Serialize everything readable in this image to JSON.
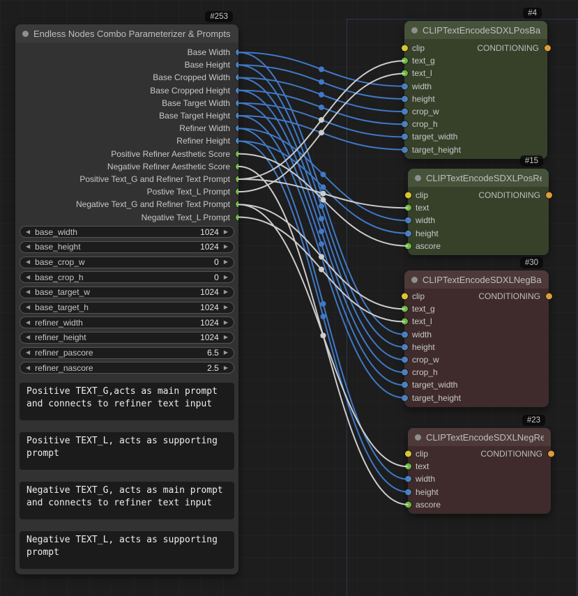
{
  "canvas": {
    "background": "#1d1d1d",
    "major_grid_color": "rgba(70,95,160,0.40)"
  },
  "left_node": {
    "badge": "#253",
    "title": "Endless Nodes Combo Parameterizer & Prompts",
    "outputs": [
      {
        "label": "Base Width",
        "type": "int"
      },
      {
        "label": "Base Height",
        "type": "int"
      },
      {
        "label": "Base Cropped Width",
        "type": "int"
      },
      {
        "label": "Base Cropped Height",
        "type": "int"
      },
      {
        "label": "Base Target Width",
        "type": "int"
      },
      {
        "label": "Base Target Height",
        "type": "int"
      },
      {
        "label": "Refiner Width",
        "type": "int"
      },
      {
        "label": "Refiner Height",
        "type": "int"
      },
      {
        "label": "Positive Refiner Aesthetic Score",
        "type": "float"
      },
      {
        "label": "Negative Refiner Aesthetic Score",
        "type": "float"
      },
      {
        "label": "Positive Text_G and Refiner Text Prompt",
        "type": "string"
      },
      {
        "label": "Postive Text_L Prompt",
        "type": "string"
      },
      {
        "label": "Negative Text_G and Refiner Text Prompt",
        "type": "string"
      },
      {
        "label": "Negative Text_L Prompt",
        "type": "string"
      }
    ],
    "widgets": [
      {
        "name": "base_width",
        "value": "1024"
      },
      {
        "name": "base_height",
        "value": "1024"
      },
      {
        "name": "base_crop_w",
        "value": "0"
      },
      {
        "name": "base_crop_h",
        "value": "0"
      },
      {
        "name": "base_target_w",
        "value": "1024"
      },
      {
        "name": "base_target_h",
        "value": "1024"
      },
      {
        "name": "refiner_width",
        "value": "1024"
      },
      {
        "name": "refiner_height",
        "value": "1024"
      },
      {
        "name": "refiner_pascore",
        "value": "6.5"
      },
      {
        "name": "refiner_nascore",
        "value": "2.5"
      }
    ],
    "prompts": [
      {
        "text": "Positive TEXT_G,acts as main prompt and connects to refiner text input"
      },
      {
        "text": "Positive TEXT_L, acts as supporting prompt"
      },
      {
        "text": "Negative TEXT_G, acts as main prompt and connects to refiner text input"
      },
      {
        "text": "Negative TEXT_L, acts as supporting prompt"
      }
    ]
  },
  "nodes": [
    {
      "id": "n4",
      "badge": "#4",
      "title": "CLIPTextEncodeSDXLPosBase",
      "theme": "green",
      "output": "CONDITIONING",
      "inputs": [
        {
          "name": "clip",
          "type": "clip"
        },
        {
          "name": "text_g",
          "type": "string"
        },
        {
          "name": "text_l",
          "type": "string"
        },
        {
          "name": "width",
          "type": "int"
        },
        {
          "name": "height",
          "type": "int"
        },
        {
          "name": "crop_w",
          "type": "int"
        },
        {
          "name": "crop_h",
          "type": "int"
        },
        {
          "name": "target_width",
          "type": "int"
        },
        {
          "name": "target_height",
          "type": "int"
        }
      ]
    },
    {
      "id": "n15",
      "badge": "#15",
      "title": "CLIPTextEncodeSDXLPosRefiner",
      "theme": "green",
      "output": "CONDITIONING",
      "inputs": [
        {
          "name": "clip",
          "type": "clip"
        },
        {
          "name": "text",
          "type": "string"
        },
        {
          "name": "width",
          "type": "int"
        },
        {
          "name": "height",
          "type": "int"
        },
        {
          "name": "ascore",
          "type": "float"
        }
      ]
    },
    {
      "id": "n30",
      "badge": "#30",
      "title": "CLIPTextEncodeSDXLNegBase",
      "theme": "red",
      "output": "CONDITIONING",
      "inputs": [
        {
          "name": "clip",
          "type": "clip"
        },
        {
          "name": "text_g",
          "type": "string"
        },
        {
          "name": "text_l",
          "type": "string"
        },
        {
          "name": "width",
          "type": "int"
        },
        {
          "name": "height",
          "type": "int"
        },
        {
          "name": "crop_w",
          "type": "int"
        },
        {
          "name": "crop_h",
          "type": "int"
        },
        {
          "name": "target_width",
          "type": "int"
        },
        {
          "name": "target_height",
          "type": "int"
        }
      ]
    },
    {
      "id": "n23",
      "badge": "#23",
      "title": "CLIPTextEncodeSDXLNegRefiner",
      "theme": "red",
      "output": "CONDITIONING",
      "inputs": [
        {
          "name": "clip",
          "type": "clip"
        },
        {
          "name": "text",
          "type": "string"
        },
        {
          "name": "width",
          "type": "int"
        },
        {
          "name": "height",
          "type": "int"
        },
        {
          "name": "ascore",
          "type": "float"
        }
      ]
    }
  ],
  "links": [
    {
      "from": "out-0",
      "to": "n4-width",
      "type": "int"
    },
    {
      "from": "out-1",
      "to": "n4-height",
      "type": "int"
    },
    {
      "from": "out-2",
      "to": "n4-crop_w",
      "type": "int"
    },
    {
      "from": "out-3",
      "to": "n4-crop_h",
      "type": "int"
    },
    {
      "from": "out-4",
      "to": "n4-target_width",
      "type": "int"
    },
    {
      "from": "out-5",
      "to": "n4-target_height",
      "type": "int"
    },
    {
      "from": "out-0",
      "to": "n30-width",
      "type": "int"
    },
    {
      "from": "out-1",
      "to": "n30-height",
      "type": "int"
    },
    {
      "from": "out-2",
      "to": "n30-crop_w",
      "type": "int"
    },
    {
      "from": "out-3",
      "to": "n30-crop_h",
      "type": "int"
    },
    {
      "from": "out-4",
      "to": "n30-target_width",
      "type": "int"
    },
    {
      "from": "out-5",
      "to": "n30-target_height",
      "type": "int"
    },
    {
      "from": "out-6",
      "to": "n15-width",
      "type": "int"
    },
    {
      "from": "out-7",
      "to": "n15-height",
      "type": "int"
    },
    {
      "from": "out-6",
      "to": "n23-width",
      "type": "int"
    },
    {
      "from": "out-7",
      "to": "n23-height",
      "type": "int"
    },
    {
      "from": "out-8",
      "to": "n15-ascore",
      "type": "float"
    },
    {
      "from": "out-9",
      "to": "n23-ascore",
      "type": "float"
    },
    {
      "from": "out-10",
      "to": "n4-text_g",
      "type": "string"
    },
    {
      "from": "out-10",
      "to": "n15-text",
      "type": "string"
    },
    {
      "from": "out-11",
      "to": "n4-text_l",
      "type": "string"
    },
    {
      "from": "out-12",
      "to": "n30-text_g",
      "type": "string"
    },
    {
      "from": "out-12",
      "to": "n23-text",
      "type": "string"
    },
    {
      "from": "out-13",
      "to": "n30-text_l",
      "type": "string"
    }
  ],
  "colors": {
    "port": {
      "int": "#4E82BC",
      "float": "#6CBB3F",
      "string": "#6CBB3F",
      "clip": "#D9C533",
      "conditioning": "#DE9C3B"
    },
    "wire": {
      "int": "#4079C8",
      "float": "#CDCDCD",
      "string": "#CDCDCD"
    }
  }
}
